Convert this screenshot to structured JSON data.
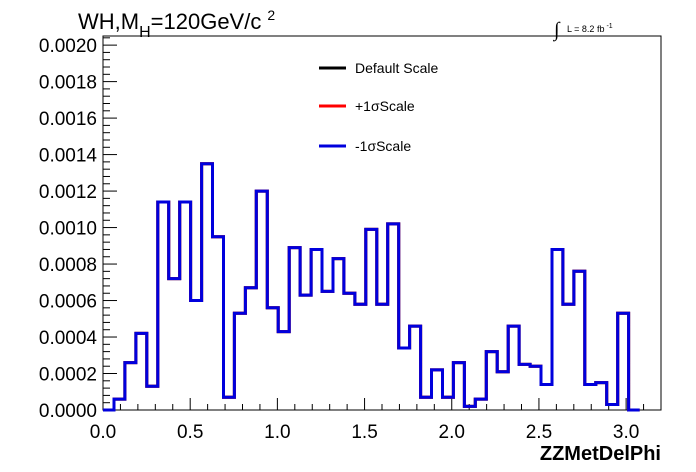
{
  "chart_data": {
    "type": "line",
    "title_main": "WH,M",
    "title_sub": "H",
    "title_rest": "=120GeV/c",
    "title_sup": "2",
    "lumi_text": "L = 8.2 fb",
    "lumi_sup": "-1",
    "xlabel": "ZZMetDelPhi",
    "ylabel": "",
    "xlim": [
      0.0,
      3.2
    ],
    "ylim": [
      0.0,
      0.00205
    ],
    "xticks": [
      "0.0",
      "0.5",
      "1.0",
      "1.5",
      "2.0",
      "2.5",
      "3.0"
    ],
    "xtick_values": [
      0.0,
      0.5,
      1.0,
      1.5,
      2.0,
      2.5,
      3.0
    ],
    "yticks": [
      "0.0000",
      "0.0002",
      "0.0004",
      "0.0006",
      "0.0008",
      "0.0010",
      "0.0012",
      "0.0014",
      "0.0016",
      "0.0018",
      "0.0020"
    ],
    "ytick_values": [
      0.0,
      0.0002,
      0.0004,
      0.0006,
      0.0008,
      0.001,
      0.0012,
      0.0014,
      0.0016,
      0.0018,
      0.002
    ],
    "grid": false,
    "legend_position": "top-center",
    "bin_width": 0.0628,
    "series": [
      {
        "name": "Default Scale",
        "color": "#000000",
        "values": [
          0.0,
          6e-05,
          0.00026,
          0.00042,
          0.00013,
          0.00114,
          0.00072,
          0.00114,
          0.0006,
          0.00135,
          0.00095,
          7e-05,
          0.00053,
          0.00067,
          0.0012,
          0.00056,
          0.00043,
          0.00089,
          0.00063,
          0.00088,
          0.00065,
          0.00083,
          0.00064,
          0.00058,
          0.00099,
          0.00058,
          0.00102,
          0.00034,
          0.00046,
          7e-05,
          0.00022,
          7e-05,
          0.00026,
          2e-05,
          6e-05,
          0.00032,
          0.00021,
          0.00046,
          0.00025,
          0.00024,
          0.00014,
          0.00088,
          0.00058,
          0.00076,
          0.00014,
          0.00015,
          3e-05,
          0.00053,
          0.0
        ]
      },
      {
        "name": "+1σScale",
        "color": "#ff0000",
        "values": [
          0.0,
          6e-05,
          0.00026,
          0.00042,
          0.00013,
          0.00114,
          0.00072,
          0.00114,
          0.0006,
          0.00135,
          0.00095,
          7e-05,
          0.00053,
          0.00067,
          0.0012,
          0.00056,
          0.00043,
          0.00089,
          0.00063,
          0.00088,
          0.00065,
          0.00083,
          0.00064,
          0.00058,
          0.00099,
          0.00058,
          0.00102,
          0.00034,
          0.00046,
          7e-05,
          0.00022,
          7e-05,
          0.00026,
          2e-05,
          6e-05,
          0.00032,
          0.00021,
          0.00046,
          0.00025,
          0.00024,
          0.00014,
          0.00088,
          0.00058,
          0.00076,
          0.00014,
          0.00015,
          3e-05,
          0.00053,
          0.0
        ]
      },
      {
        "name": "-1σScale",
        "color": "#0000dd",
        "values": [
          0.0,
          6e-05,
          0.00026,
          0.00042,
          0.00013,
          0.00114,
          0.00072,
          0.00114,
          0.0006,
          0.00135,
          0.00095,
          7e-05,
          0.00053,
          0.00067,
          0.0012,
          0.00056,
          0.00043,
          0.00089,
          0.00063,
          0.00088,
          0.00065,
          0.00083,
          0.00064,
          0.00058,
          0.00099,
          0.00058,
          0.00102,
          0.00034,
          0.00046,
          7e-05,
          0.00022,
          7e-05,
          0.00026,
          2e-05,
          6e-05,
          0.00032,
          0.00021,
          0.00046,
          0.00025,
          0.00024,
          0.00014,
          0.00088,
          0.00058,
          0.00076,
          0.00014,
          0.00015,
          3e-05,
          0.00053,
          0.0
        ]
      }
    ]
  }
}
